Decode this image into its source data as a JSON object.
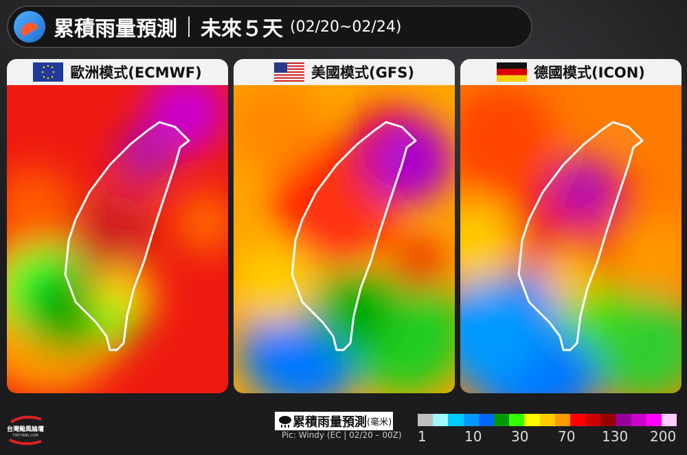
{
  "header": {
    "title": "累積雨量預測",
    "subtitle": "未來５天",
    "date_range": "(02/20~02/24)",
    "icon": "rain-umbrella-icon"
  },
  "panels": [
    {
      "label": "歐洲模式(ECMWF)",
      "flag": "eu-flag-icon"
    },
    {
      "label": "美國模式(GFS)",
      "flag": "us-flag-icon"
    },
    {
      "label": "德國模式(ICON)",
      "flag": "germany-flag-icon"
    }
  ],
  "legend": {
    "title": "累積雨量預測",
    "unit": "(毫米)",
    "icon": "rain-cloud-icon",
    "credit": "Pic: Windy (EC | 02/20 – 00Z)",
    "colors": [
      "#c0c0c0",
      "#9ff7ff",
      "#00ccff",
      "#0099ff",
      "#0066ff",
      "#009900",
      "#33ff00",
      "#ffff00",
      "#ffcc00",
      "#ff9900",
      "#ff0000",
      "#cc0000",
      "#990000",
      "#990099",
      "#cc00cc",
      "#ff00ff",
      "#ffccff"
    ],
    "ticks": [
      "1",
      "10",
      "30",
      "70",
      "130",
      "200"
    ]
  },
  "brand": {
    "name": "台灣颱風論壇",
    "site": "TWTYBBS.COM"
  }
}
